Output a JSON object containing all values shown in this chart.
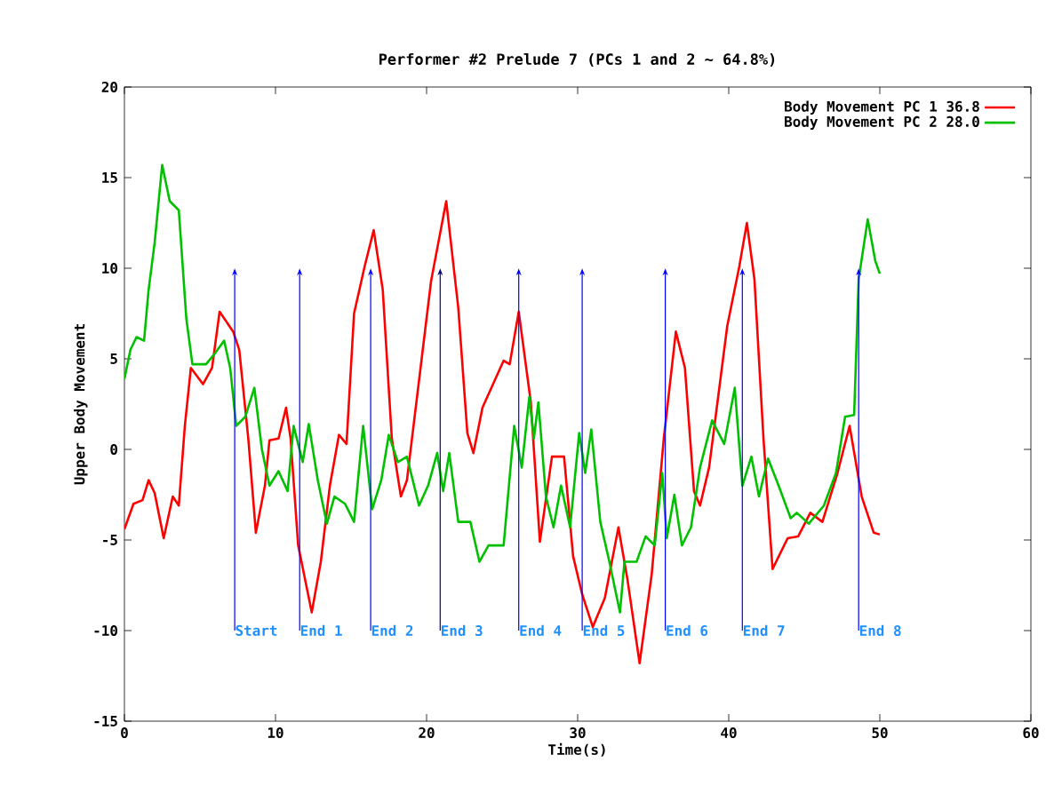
{
  "chart_data": {
    "type": "line",
    "title": "Performer #2 Prelude 7 (PCs 1 and 2 ~ 64.8%)",
    "xlabel": "Time(s)",
    "ylabel": "Upper Body Movement",
    "xlim": [
      0,
      60
    ],
    "xticks": [
      0,
      10,
      20,
      30,
      40,
      50,
      60
    ],
    "ylim": [
      -15,
      20
    ],
    "yticks": [
      -15,
      -10,
      -5,
      0,
      5,
      10,
      15,
      20
    ],
    "legend": "top right",
    "grid": false,
    "marker": "none",
    "line_style": "solid",
    "series": [
      {
        "name": "Body Movement PC 1 36.8",
        "color": "#ff0000",
        "x": [
          0,
          0.6,
          1.2,
          1.6,
          2.0,
          2.6,
          3.2,
          3.6,
          4.0,
          4.4,
          5.2,
          5.8,
          6.3,
          7.2,
          7.6,
          8.2,
          8.7,
          9.3,
          9.6,
          10.2,
          10.7,
          11.0,
          11.5,
          12.4,
          13.0,
          13.6,
          14.2,
          14.7,
          15.2,
          15.9,
          16.5,
          17.1,
          17.7,
          18.3,
          18.7,
          20.3,
          21.3,
          22.1,
          22.7,
          23.1,
          23.7,
          25.1,
          25.5,
          26.1,
          26.9,
          27.5,
          28.3,
          29.1,
          29.7,
          30.3,
          31.0,
          31.8,
          32.7,
          33.3,
          34.1,
          34.9,
          35.7,
          36.5,
          37.1,
          37.7,
          38.1,
          38.7,
          39.9,
          40.7,
          41.2,
          41.7,
          42.3,
          42.9,
          43.9,
          44.6,
          45.4,
          46.2,
          47.2,
          48.0,
          48.8,
          49.6,
          50.0
        ],
        "values": [
          -4.4,
          -3.0,
          -2.8,
          -1.7,
          -2.4,
          -4.9,
          -2.6,
          -3.1,
          1.3,
          4.5,
          3.6,
          4.5,
          7.6,
          6.5,
          5.5,
          0.6,
          -4.6,
          -2.0,
          0.5,
          0.6,
          2.3,
          0.6,
          -5.3,
          -9.0,
          -6.2,
          -2.0,
          0.8,
          0.3,
          7.5,
          10.1,
          12.1,
          8.8,
          0.6,
          -2.6,
          -1.7,
          9.3,
          13.7,
          7.8,
          0.9,
          -0.2,
          2.3,
          4.9,
          4.7,
          7.6,
          2.6,
          -5.1,
          -0.4,
          -0.4,
          -5.9,
          -8.0,
          -9.8,
          -8.2,
          -4.3,
          -7.2,
          -11.8,
          -6.9,
          0.6,
          6.5,
          4.5,
          -2.3,
          -3.1,
          -1.0,
          6.8,
          10.1,
          12.5,
          9.4,
          0.6,
          -6.6,
          -4.9,
          -4.8,
          -3.5,
          -4.0,
          -1.3,
          1.3,
          -2.6,
          -4.6,
          -4.7
        ]
      },
      {
        "name": "Body Movement PC 2 28.0",
        "color": "#00c000",
        "x": [
          0,
          0.4,
          0.8,
          1.3,
          1.6,
          2.0,
          2.5,
          3.0,
          3.6,
          4.1,
          4.5,
          5.4,
          5.9,
          6.6,
          7.0,
          7.4,
          8.0,
          8.6,
          9.1,
          9.6,
          10.2,
          10.8,
          11.2,
          11.8,
          12.2,
          12.8,
          13.4,
          13.9,
          14.6,
          15.2,
          15.8,
          16.4,
          17.0,
          17.5,
          18.1,
          18.7,
          19.5,
          20.1,
          20.7,
          21.1,
          21.5,
          22.1,
          22.9,
          23.5,
          24.1,
          25.1,
          25.8,
          26.3,
          26.8,
          27.1,
          27.4,
          27.9,
          28.4,
          28.9,
          29.5,
          30.1,
          30.5,
          30.9,
          31.5,
          32.1,
          32.8,
          33.1,
          33.9,
          34.5,
          35.1,
          35.6,
          35.9,
          36.4,
          36.9,
          37.5,
          38.1,
          38.9,
          39.7,
          40.4,
          40.9,
          41.5,
          42.0,
          42.6,
          43.3,
          44.1,
          44.5,
          45.3,
          46.3,
          47.1,
          47.7,
          48.3,
          48.6,
          49.2,
          49.7,
          50.0
        ],
        "values": [
          3.9,
          5.5,
          6.2,
          6.0,
          8.8,
          11.4,
          15.7,
          13.7,
          13.2,
          7.2,
          4.7,
          4.7,
          5.2,
          6.0,
          4.5,
          1.3,
          1.8,
          3.4,
          0.0,
          -2.0,
          -1.2,
          -2.3,
          1.3,
          -0.7,
          1.4,
          -1.7,
          -4.1,
          -2.6,
          -3.0,
          -4.0,
          1.3,
          -3.3,
          -1.7,
          0.8,
          -0.7,
          -0.4,
          -3.1,
          -2.0,
          -0.2,
          -2.3,
          -0.2,
          -4.0,
          -4.0,
          -6.2,
          -5.3,
          -5.3,
          1.3,
          -1.0,
          2.9,
          0.6,
          2.6,
          -2.6,
          -4.3,
          -2.0,
          -4.3,
          0.9,
          -1.3,
          1.1,
          -4.0,
          -6.2,
          -9.0,
          -6.2,
          -6.2,
          -4.8,
          -5.3,
          -1.3,
          -4.9,
          -2.5,
          -5.3,
          -4.3,
          -1.0,
          1.6,
          0.3,
          3.4,
          -2.0,
          -0.4,
          -2.6,
          -0.5,
          -2.0,
          -3.8,
          -3.5,
          -4.1,
          -3.1,
          -1.3,
          1.8,
          1.9,
          9.4,
          12.7,
          10.4,
          9.7
        ]
      }
    ],
    "ref_lines": [
      {
        "axis": "x",
        "value": 7.3,
        "label": "Start",
        "color": "#0000ff"
      },
      {
        "axis": "x",
        "value": 11.6,
        "label": "End 1",
        "color": "#0000ff"
      },
      {
        "axis": "x",
        "value": 16.3,
        "label": "End 2",
        "color": "#0000ff"
      },
      {
        "axis": "x",
        "value": 20.9,
        "label": "End 3",
        "color": "#000080"
      },
      {
        "axis": "x",
        "value": 26.1,
        "label": "End 4",
        "color": "#0000ff"
      },
      {
        "axis": "x",
        "value": 30.3,
        "label": "End 5",
        "color": "#0000ff"
      },
      {
        "axis": "x",
        "value": 35.8,
        "label": "End 6",
        "color": "#0000ff"
      },
      {
        "axis": "x",
        "value": 40.9,
        "label": "End 7",
        "color": "#0000ff"
      },
      {
        "axis": "x",
        "value": 48.6,
        "label": "End 8",
        "color": "#0000ff"
      }
    ]
  }
}
